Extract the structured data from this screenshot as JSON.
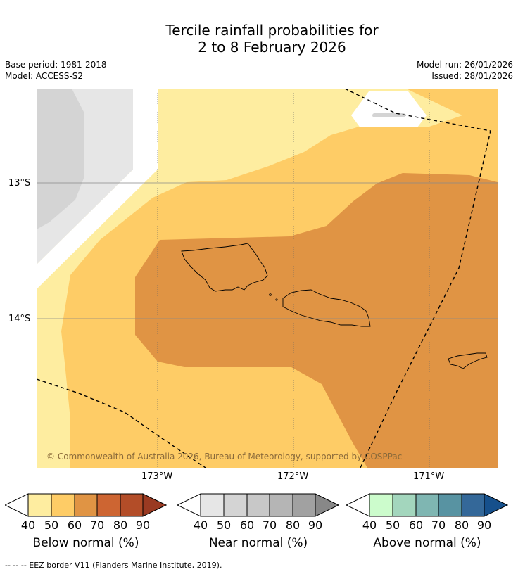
{
  "title_line1": "Tercile rainfall probabilities for",
  "title_line2": "2 to 8 February 2026",
  "meta_left": [
    "Base period: 1981-2018",
    "Model: ACCESS-S2"
  ],
  "meta_right": [
    "Model run: 26/01/2026",
    "Issued: 28/01/2026"
  ],
  "map": {
    "lat_labels": [
      "13°S",
      "14°S"
    ],
    "lon_labels": [
      "173°W",
      "172°W",
      "171°W"
    ],
    "copyright": "© Commonwealth of Australia 2026, Bureau of Meteorology, supported by COSPPac",
    "colors": {
      "below_40_50": "#feeda0",
      "below_50_60": "#fecc66",
      "below_60_70": "#e09444",
      "near_50_60": "#e6e6e6",
      "near_60_70": "#d4d4d4",
      "no_signal": "#ffffff"
    }
  },
  "colorbars": [
    {
      "label": "Below normal (%)",
      "ticks": [
        "40",
        "50",
        "60",
        "70",
        "80",
        "90"
      ],
      "colors": [
        "#ffffff",
        "#feeda0",
        "#fecc66",
        "#e09444",
        "#cd6532",
        "#b34d28",
        "#9a3a22"
      ]
    },
    {
      "label": "Near normal (%)",
      "ticks": [
        "40",
        "50",
        "60",
        "70",
        "80",
        "90"
      ],
      "colors": [
        "#ffffff",
        "#e6e6e6",
        "#d4d4d4",
        "#c8c8c8",
        "#b5b5b5",
        "#a1a1a1",
        "#888888"
      ]
    },
    {
      "label": "Above normal (%)",
      "ticks": [
        "40",
        "50",
        "60",
        "70",
        "80",
        "90"
      ],
      "colors": [
        "#ffffff",
        "#ccfccc",
        "#a3d6bd",
        "#7fb6b2",
        "#5893a2",
        "#346899",
        "#16508c"
      ]
    }
  ],
  "footer": "--  --  -- EEZ border V11 (Flanders Marine Institute, 2019)."
}
